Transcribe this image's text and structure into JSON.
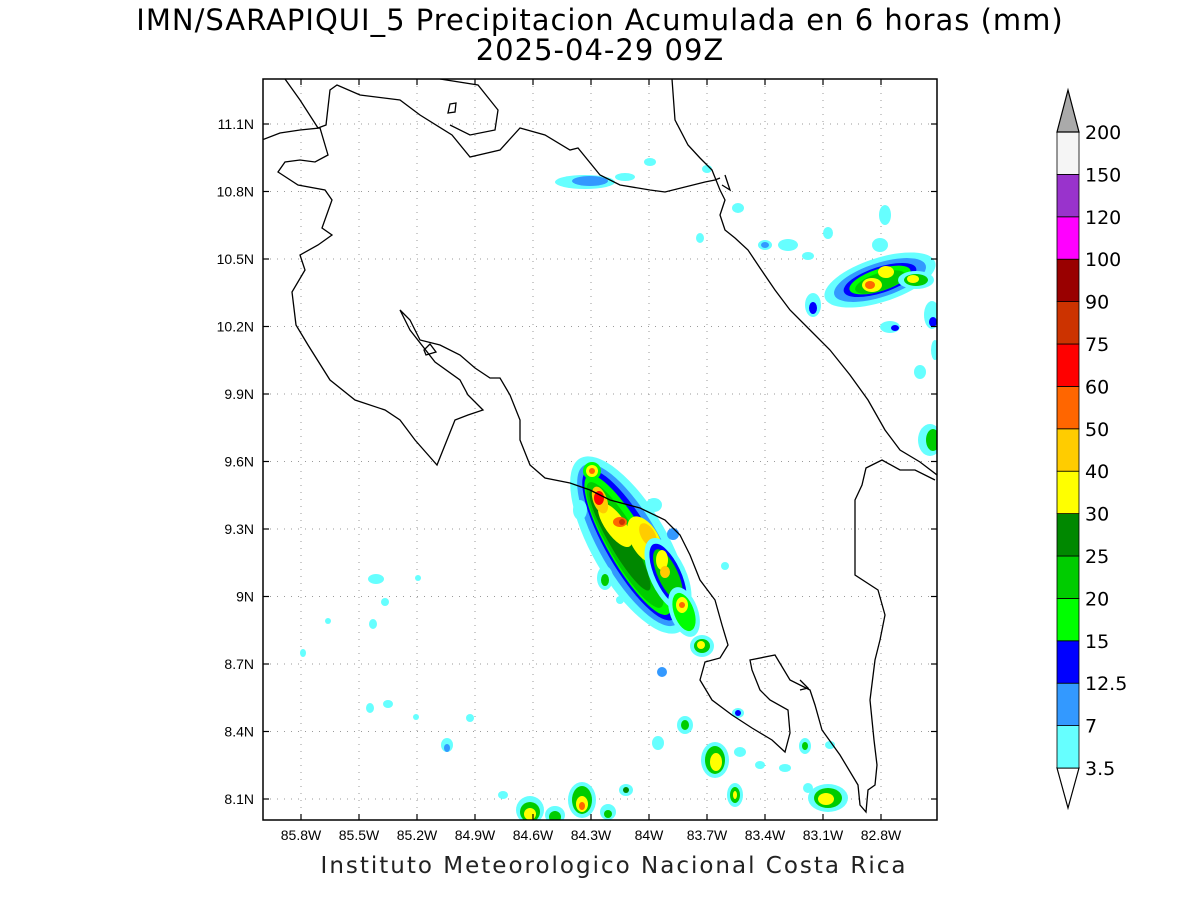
{
  "map": {
    "title_line1": "IMN/SARAPIQUI_5 Precipitacion Acumulada en 6 horas (mm)",
    "title_line2": "2025-04-29 09Z",
    "credit": "Instituto Meteorologico Nacional Costa Rica",
    "lon_labels": [
      "85.8W",
      "85.5W",
      "85.2W",
      "84.9W",
      "84.6W",
      "84.3W",
      "84W",
      "83.7W",
      "83.4W",
      "83.1W",
      "82.8W"
    ],
    "lat_labels": [
      "11.1N",
      "10.8N",
      "10.5N",
      "10.2N",
      "9.9N",
      "9.6N",
      "9.3N",
      "9N",
      "8.7N",
      "8.4N",
      "8.1N"
    ]
  },
  "colorbar": {
    "labels": [
      "3.5",
      "7",
      "12.5",
      "15",
      "20",
      "25",
      "30",
      "40",
      "50",
      "60",
      "75",
      "90",
      "100",
      "120",
      "150",
      "200"
    ],
    "colors": [
      "#66ffff",
      "#3399ff",
      "#0000ff",
      "#00ff00",
      "#00cc00",
      "#008800",
      "#ffff00",
      "#ffcc00",
      "#ff6600",
      "#ff0000",
      "#cc3300",
      "#990000",
      "#ff00ff",
      "#9933cc",
      "#f5f5f5",
      "#aaaaaa"
    ]
  }
}
